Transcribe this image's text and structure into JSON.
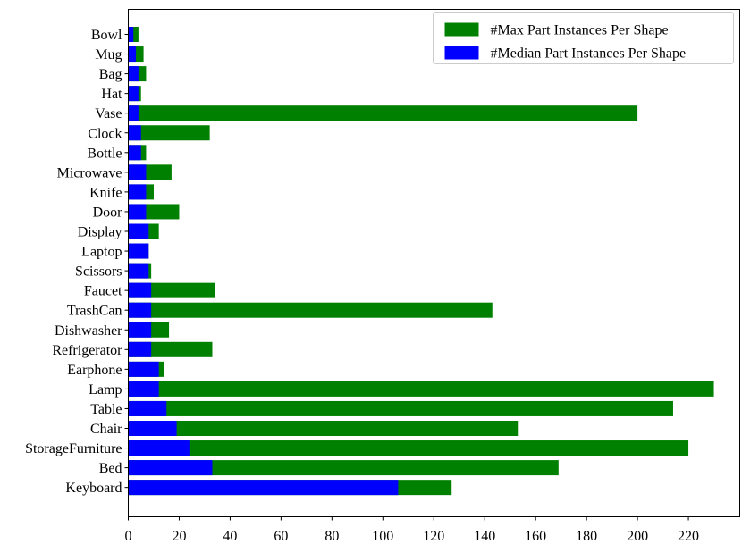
{
  "chart_data": {
    "type": "bar",
    "orientation": "horizontal",
    "stacked": false,
    "categories": [
      "Bowl",
      "Mug",
      "Bag",
      "Hat",
      "Vase",
      "Clock",
      "Bottle",
      "Microwave",
      "Knife",
      "Door",
      "Display",
      "Laptop",
      "Scissors",
      "Faucet",
      "TrashCan",
      "Dishwasher",
      "Refrigerator",
      "Earphone",
      "Lamp",
      "Table",
      "Chair",
      "StorageFurniture",
      "Bed",
      "Keyboard"
    ],
    "series": [
      {
        "name": "#Max Part Instances Per Shape",
        "color": "#008000",
        "values": [
          4,
          6,
          7,
          5,
          200,
          32,
          7,
          17,
          10,
          20,
          12,
          8,
          9,
          34,
          143,
          16,
          33,
          14,
          230,
          214,
          153,
          220,
          169,
          127
        ]
      },
      {
        "name": "#Median Part Instances Per Shape",
        "color": "#0000ff",
        "values": [
          2,
          3,
          4,
          4,
          4,
          5,
          5,
          7,
          7,
          7,
          8,
          8,
          8,
          9,
          9,
          9,
          9,
          12,
          12,
          15,
          19,
          24,
          33,
          106
        ]
      }
    ],
    "xlim": [
      0,
      240
    ],
    "xticks": [
      0,
      20,
      40,
      60,
      80,
      100,
      120,
      140,
      160,
      180,
      200,
      220
    ],
    "title": "",
    "xlabel": "",
    "ylabel": "",
    "grid": false,
    "legend": "top-right"
  }
}
